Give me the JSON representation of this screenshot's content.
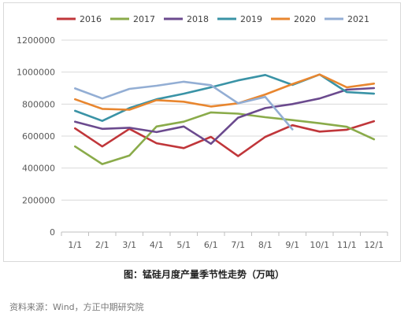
{
  "caption": "图：锰硅月度产量季节性走势（万吨）",
  "source": "资料来源：Wind，方正中期研究院",
  "chart_data": {
    "type": "line",
    "categories": [
      "1/1",
      "2/1",
      "3/1",
      "4/1",
      "5/1",
      "6/1",
      "7/1",
      "8/1",
      "9/1",
      "10/1",
      "11/1",
      "12/1"
    ],
    "yticks": [
      "0",
      "200000",
      "400000",
      "600000",
      "800000",
      "1000000",
      "1200000"
    ],
    "ylim": [
      0,
      1200000
    ],
    "grid": true,
    "legend_position": "top",
    "series": [
      {
        "name": "2016",
        "color": "#c0363a",
        "values": [
          648000,
          535000,
          645000,
          555000,
          525000,
          595000,
          475000,
          595000,
          668000,
          628000,
          640000,
          693000
        ]
      },
      {
        "name": "2017",
        "color": "#8aab4a",
        "values": [
          535000,
          425000,
          478000,
          660000,
          690000,
          748000,
          740000,
          718000,
          700000,
          680000,
          658000,
          580000
        ]
      },
      {
        "name": "2018",
        "color": "#6b4a8e",
        "values": [
          690000,
          645000,
          652000,
          625000,
          660000,
          552000,
          715000,
          775000,
          800000,
          835000,
          890000,
          900000
        ]
      },
      {
        "name": "2019",
        "color": "#3a93a6",
        "values": [
          758000,
          695000,
          775000,
          830000,
          865000,
          905000,
          948000,
          982000,
          920000,
          985000,
          875000,
          865000
        ]
      },
      {
        "name": "2020",
        "color": "#e8862f",
        "values": [
          830000,
          770000,
          765000,
          825000,
          815000,
          785000,
          805000,
          860000,
          925000,
          985000,
          905000,
          928000
        ]
      },
      {
        "name": "2021",
        "color": "#93aed4",
        "values": [
          898000,
          835000,
          895000,
          915000,
          940000,
          918000,
          805000,
          845000,
          642000,
          null,
          null,
          null
        ]
      }
    ]
  }
}
